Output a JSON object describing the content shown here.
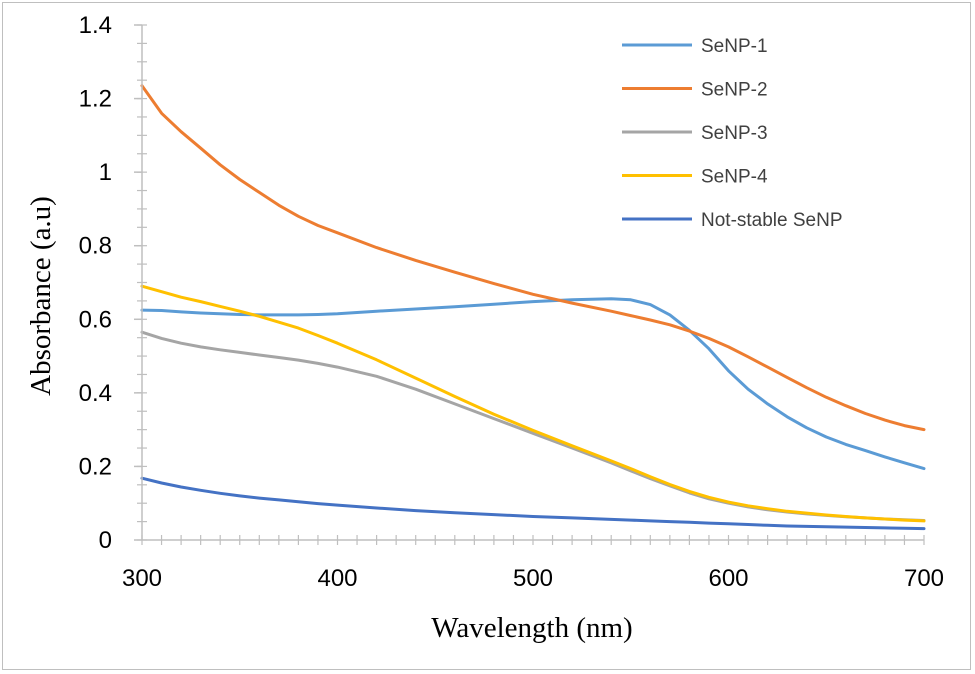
{
  "chart_data": {
    "type": "line",
    "title": "",
    "xlabel": "Wavelength (nm)",
    "ylabel": "Absorbance (a.u)",
    "xlim": [
      300,
      700
    ],
    "ylim": [
      0,
      1.4
    ],
    "xticks": [
      300,
      400,
      500,
      600,
      700
    ],
    "yticks": [
      0,
      0.2,
      0.4,
      0.6,
      0.8,
      1,
      1.2,
      1.4
    ],
    "x_tick_labels": [
      "300",
      "400",
      "500",
      "600",
      "700"
    ],
    "y_tick_labels": [
      "0",
      "0.2",
      "0.4",
      "0.6",
      "0.8",
      "1",
      "1.2",
      "1.4"
    ],
    "grid": false,
    "legend_position": "top-right",
    "x": [
      300,
      310,
      320,
      330,
      340,
      350,
      360,
      370,
      380,
      390,
      400,
      420,
      440,
      460,
      480,
      500,
      520,
      540,
      550,
      560,
      570,
      580,
      590,
      600,
      610,
      620,
      630,
      640,
      650,
      660,
      670,
      680,
      690,
      700
    ],
    "series": [
      {
        "name": "SeNP-1",
        "color": "#5b9bd5",
        "values": [
          0.625,
          0.624,
          0.62,
          0.617,
          0.615,
          0.613,
          0.612,
          0.612,
          0.612,
          0.613,
          0.615,
          0.622,
          0.628,
          0.634,
          0.641,
          0.648,
          0.653,
          0.656,
          0.653,
          0.64,
          0.612,
          0.57,
          0.52,
          0.46,
          0.41,
          0.37,
          0.335,
          0.305,
          0.28,
          0.26,
          0.243,
          0.226,
          0.21,
          0.194
        ]
      },
      {
        "name": "SeNP-2",
        "color": "#ed7d31",
        "values": [
          1.235,
          1.16,
          1.11,
          1.065,
          1.02,
          0.98,
          0.945,
          0.91,
          0.88,
          0.855,
          0.835,
          0.795,
          0.76,
          0.728,
          0.697,
          0.668,
          0.644,
          0.622,
          0.61,
          0.598,
          0.585,
          0.568,
          0.548,
          0.525,
          0.498,
          0.47,
          0.442,
          0.414,
          0.388,
          0.365,
          0.344,
          0.326,
          0.311,
          0.3
        ]
      },
      {
        "name": "SeNP-3",
        "color": "#a5a5a5",
        "values": [
          0.565,
          0.548,
          0.535,
          0.525,
          0.517,
          0.51,
          0.503,
          0.496,
          0.489,
          0.48,
          0.47,
          0.445,
          0.41,
          0.37,
          0.33,
          0.29,
          0.25,
          0.21,
          0.188,
          0.167,
          0.147,
          0.128,
          0.112,
          0.1,
          0.09,
          0.082,
          0.076,
          0.071,
          0.067,
          0.063,
          0.06,
          0.057,
          0.055,
          0.053
        ]
      },
      {
        "name": "SeNP-4",
        "color": "#ffc000",
        "values": [
          0.69,
          0.675,
          0.66,
          0.648,
          0.635,
          0.622,
          0.608,
          0.592,
          0.576,
          0.556,
          0.535,
          0.49,
          0.44,
          0.39,
          0.342,
          0.298,
          0.256,
          0.215,
          0.194,
          0.172,
          0.151,
          0.132,
          0.116,
          0.103,
          0.093,
          0.085,
          0.078,
          0.073,
          0.068,
          0.064,
          0.06,
          0.057,
          0.054,
          0.052
        ]
      },
      {
        "name": "Not-stable SeNP",
        "color": "#4472c4",
        "values": [
          0.168,
          0.155,
          0.144,
          0.135,
          0.127,
          0.12,
          0.114,
          0.109,
          0.104,
          0.099,
          0.095,
          0.087,
          0.08,
          0.074,
          0.069,
          0.064,
          0.06,
          0.056,
          0.054,
          0.052,
          0.05,
          0.048,
          0.046,
          0.044,
          0.042,
          0.04,
          0.038,
          0.037,
          0.036,
          0.035,
          0.034,
          0.033,
          0.032,
          0.031
        ]
      }
    ]
  }
}
